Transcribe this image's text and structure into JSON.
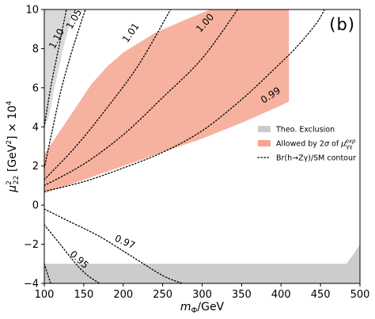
{
  "chart_data": {
    "type": "contour",
    "panel_label": "(b)",
    "xlabel": "m_Φ/GeV",
    "ylabel": "μ²₂₂ [GeV²] × 10⁴",
    "xlim": [
      100,
      500
    ],
    "ylim": [
      -4,
      10
    ],
    "x_ticks": [
      "100",
      "150",
      "200",
      "250",
      "300",
      "350",
      "400",
      "450",
      "500"
    ],
    "y_ticks": [
      "-4",
      "-2",
      "0",
      "2",
      "4",
      "6",
      "8",
      "10"
    ],
    "legend": {
      "placement": "center-right",
      "entries": [
        {
          "label": "Theo. Exclusion",
          "color": "#cccccc",
          "style": "patch"
        },
        {
          "label": "Allowed by 2σ of μ_γγ^exp",
          "color": "#f4a58e",
          "style": "patch"
        },
        {
          "label": "Br(h→Zγ)/SM contour",
          "color": "#000000",
          "style": "dotted"
        }
      ]
    },
    "regions": [
      {
        "name": "Theo. Exclusion",
        "color": "#cccccc",
        "polygons": [
          [
            [
              100,
              10
            ],
            [
              137,
              10
            ],
            [
              124,
              8
            ],
            [
              113,
              6
            ],
            [
              105,
              4.4
            ],
            [
              100,
              4.0
            ]
          ],
          [
            [
              100,
              -3.0
            ],
            [
              483,
              -3.0
            ],
            [
              492,
              -2.5
            ],
            [
              500,
              -2.0
            ],
            [
              500,
              -4
            ],
            [
              100,
              -4
            ]
          ]
        ]
      },
      {
        "name": "Allowed by 2σ of μ_γγ^exp",
        "color": "#f4a58e",
        "upper_boundary": [
          [
            100,
            2.6
          ],
          [
            120,
            3.8
          ],
          [
            140,
            5.0
          ],
          [
            160,
            6.2
          ],
          [
            180,
            7.1
          ],
          [
            200,
            7.8
          ],
          [
            240,
            8.8
          ],
          [
            280,
            9.5
          ],
          [
            310,
            10
          ],
          [
            400,
            10
          ]
        ],
        "lower_boundary": [
          [
            100,
            0.6
          ],
          [
            150,
            1.3
          ],
          [
            200,
            2.0
          ],
          [
            250,
            2.7
          ],
          [
            300,
            3.4
          ],
          [
            350,
            4.2
          ],
          [
            400,
            5.1
          ],
          [
            410,
            5.3
          ],
          [
            410,
            10
          ]
        ]
      }
    ],
    "contours": [
      {
        "level": "1.10",
        "points": [
          [
            100,
            4.0
          ],
          [
            108,
            6.0
          ],
          [
            118,
            8.0
          ],
          [
            128,
            10.0
          ]
        ]
      },
      {
        "level": "1.05",
        "points": [
          [
            100,
            1.9
          ],
          [
            110,
            3.8
          ],
          [
            122,
            6.0
          ],
          [
            136,
            8.0
          ],
          [
            152,
            10.0
          ]
        ]
      },
      {
        "level": "1.01",
        "points": [
          [
            100,
            1.3
          ],
          [
            140,
            3.0
          ],
          [
            180,
            5.0
          ],
          [
            220,
            7.2
          ],
          [
            260,
            10.0
          ]
        ]
      },
      {
        "level": "1.00",
        "points": [
          [
            100,
            1.0
          ],
          [
            150,
            2.1
          ],
          [
            200,
            3.6
          ],
          [
            250,
            5.5
          ],
          [
            300,
            7.5
          ],
          [
            345,
            10.0
          ]
        ]
      },
      {
        "level": "0.99",
        "points": [
          [
            100,
            0.7
          ],
          [
            150,
            1.2
          ],
          [
            200,
            1.9
          ],
          [
            250,
            2.7
          ],
          [
            300,
            3.8
          ],
          [
            350,
            5.4
          ],
          [
            390,
            6.9
          ],
          [
            420,
            8.1
          ],
          [
            445,
            9.3
          ],
          [
            455,
            10.0
          ]
        ]
      },
      {
        "level": "0.97",
        "points": [
          [
            100,
            -0.2
          ],
          [
            130,
            -0.8
          ],
          [
            170,
            -1.6
          ],
          [
            210,
            -2.6
          ],
          [
            250,
            -3.6
          ],
          [
            275,
            -4.0
          ]
        ]
      },
      {
        "level": "0.95",
        "points": [
          [
            100,
            -1.0
          ],
          [
            120,
            -2.0
          ],
          [
            140,
            -3.0
          ],
          [
            155,
            -3.6
          ],
          [
            170,
            -4.0
          ]
        ]
      },
      {
        "level": "",
        "points": [
          [
            100,
            -3.0
          ],
          [
            108,
            -4.0
          ]
        ]
      }
    ],
    "contour_labels": [
      {
        "text": "1.10",
        "x": 116,
        "y": 8.5,
        "angle": -62
      },
      {
        "text": "1.05",
        "x": 138,
        "y": 9.5,
        "angle": -60
      },
      {
        "text": "1.01",
        "x": 210,
        "y": 8.8,
        "angle": -55
      },
      {
        "text": "1.00",
        "x": 304,
        "y": 9.3,
        "angle": -48
      },
      {
        "text": "0.99",
        "x": 387,
        "y": 5.6,
        "angle": -33
      },
      {
        "text": "0.97",
        "x": 202,
        "y": -1.9,
        "angle": 24
      },
      {
        "text": "0.95",
        "x": 144,
        "y": -2.8,
        "angle": 42
      }
    ]
  }
}
